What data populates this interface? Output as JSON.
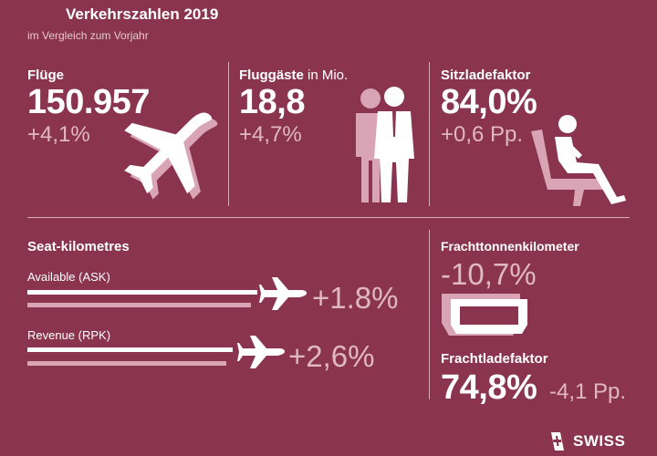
{
  "header": {
    "title": "Verkehrszahlen 2019",
    "subtitle": "im Vergleich zum Vorjahr"
  },
  "flights": {
    "label": "Flüge",
    "value": "150.957",
    "change": "+4,1%"
  },
  "passengers": {
    "label": "Fluggäste",
    "label_unit": " in Mio.",
    "value": "18,8",
    "change": "+4,7%"
  },
  "seat_load": {
    "label": "Sitzladefaktor",
    "value": "84,0%",
    "change": "+0,6 Pp."
  },
  "seat_km": {
    "label": "Seat-kilometres",
    "available": {
      "label": "Available (ASK)",
      "change": "+1.8%"
    },
    "revenue": {
      "label": "Revenue (RPK)",
      "change": "+2,6%"
    }
  },
  "freight_tkm": {
    "label": "Frachttonnenkilometer",
    "change": "-10,7%"
  },
  "freight_load": {
    "label": "Frachtladefaktor",
    "value": "74,8%",
    "change": "-4,1 Pp."
  },
  "brand": {
    "name": "SWISS"
  },
  "colors": {
    "background": "#8a3450",
    "accent_light": "#d9a4b5",
    "text": "#ffffff"
  }
}
